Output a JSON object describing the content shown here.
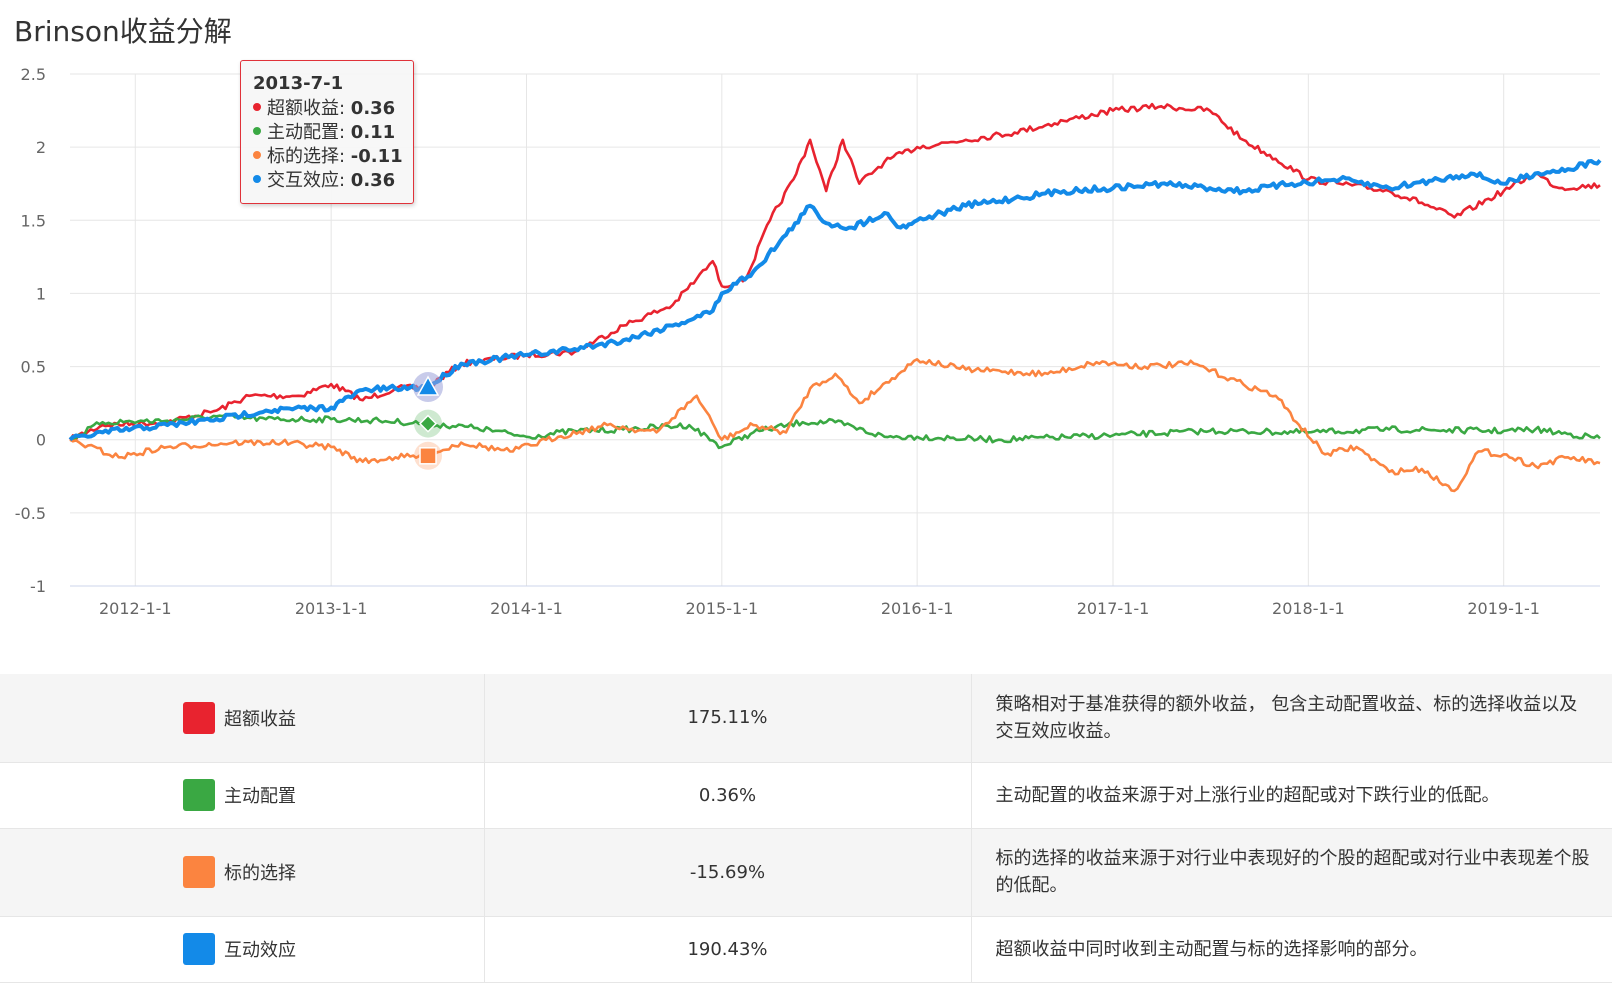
{
  "title": "Brinson收益分解",
  "tooltip": {
    "date": "2013-7-1",
    "rows": [
      {
        "name": "超额收益",
        "value": "0.36",
        "color": "#e8232f"
      },
      {
        "name": "主动配置",
        "value": "0.11",
        "color": "#3aa843"
      },
      {
        "name": "标的选择",
        "value": "-0.11",
        "color": "#fb8440"
      },
      {
        "name": "交互效应",
        "value": "0.36",
        "color": "#138ae8"
      }
    ]
  },
  "chart_data": {
    "type": "line",
    "x_ticks": [
      "2012-1-1",
      "2013-1-1",
      "2014-1-1",
      "2015-1-1",
      "2016-1-1",
      "2017-1-1",
      "2018-1-1",
      "2019-1-1"
    ],
    "y_ticks": [
      "2.5",
      "2",
      "1.5",
      "1",
      "0.5",
      "0",
      "-0.5",
      "-1"
    ],
    "ylim": [
      -1,
      2.5
    ],
    "xlim": [
      "2011-9-1",
      "2019-6-30"
    ],
    "grid": true,
    "highlight_date": "2013-7-1",
    "series": [
      {
        "name": "超额收益",
        "color": "#e8232f",
        "points": [
          [
            "2011-9-1",
            0
          ],
          [
            "2011-11-1",
            0.1
          ],
          [
            "2012-3-1",
            0.12
          ],
          [
            "2012-6-1",
            0.2
          ],
          [
            "2012-8-1",
            0.3
          ],
          [
            "2012-11-1",
            0.3
          ],
          [
            "2013-1-1",
            0.38
          ],
          [
            "2013-3-1",
            0.27
          ],
          [
            "2013-5-1",
            0.35
          ],
          [
            "2013-7-1",
            0.36
          ],
          [
            "2013-9-1",
            0.52
          ],
          [
            "2014-1-1",
            0.58
          ],
          [
            "2014-4-1",
            0.6
          ],
          [
            "2014-7-1",
            0.78
          ],
          [
            "2014-10-1",
            0.92
          ],
          [
            "2014-11-15",
            1.1
          ],
          [
            "2014-12-15",
            1.22
          ],
          [
            "2015-1-1",
            1.05
          ],
          [
            "2015-2-15",
            1.1
          ],
          [
            "2015-4-1",
            1.5
          ],
          [
            "2015-5-15",
            1.78
          ],
          [
            "2015-6-15",
            2.05
          ],
          [
            "2015-7-15",
            1.7
          ],
          [
            "2015-8-15",
            2.05
          ],
          [
            "2015-9-15",
            1.75
          ],
          [
            "2015-11-1",
            1.9
          ],
          [
            "2016-1-1",
            2.0
          ],
          [
            "2016-4-1",
            2.05
          ],
          [
            "2016-7-1",
            2.1
          ],
          [
            "2016-10-1",
            2.18
          ],
          [
            "2017-1-1",
            2.25
          ],
          [
            "2017-4-1",
            2.28
          ],
          [
            "2017-7-1",
            2.25
          ],
          [
            "2017-9-1",
            2.05
          ],
          [
            "2017-11-1",
            1.92
          ],
          [
            "2018-1-1",
            1.78
          ],
          [
            "2018-3-1",
            1.75
          ],
          [
            "2018-6-1",
            1.7
          ],
          [
            "2018-8-1",
            1.62
          ],
          [
            "2018-10-1",
            1.52
          ],
          [
            "2019-1-1",
            1.7
          ],
          [
            "2019-3-1",
            1.82
          ],
          [
            "2019-4-15",
            1.72
          ],
          [
            "2019-6-30",
            1.74
          ]
        ]
      },
      {
        "name": "主动配置",
        "color": "#3aa843",
        "points": [
          [
            "2011-9-1",
            0
          ],
          [
            "2011-11-1",
            0.12
          ],
          [
            "2012-3-1",
            0.13
          ],
          [
            "2012-6-1",
            0.16
          ],
          [
            "2012-9-1",
            0.14
          ],
          [
            "2013-1-1",
            0.14
          ],
          [
            "2013-4-1",
            0.13
          ],
          [
            "2013-7-1",
            0.11
          ],
          [
            "2013-10-1",
            0.08
          ],
          [
            "2014-1-1",
            0.02
          ],
          [
            "2014-4-1",
            0.06
          ],
          [
            "2014-7-1",
            0.07
          ],
          [
            "2014-11-1",
            0.1
          ],
          [
            "2015-1-1",
            -0.05
          ],
          [
            "2015-3-1",
            0.05
          ],
          [
            "2015-6-1",
            0.12
          ],
          [
            "2015-8-1",
            0.12
          ],
          [
            "2015-11-1",
            0.02
          ],
          [
            "2016-1-1",
            0.02
          ],
          [
            "2016-6-1",
            0.0
          ],
          [
            "2017-1-1",
            0.03
          ],
          [
            "2017-7-1",
            0.06
          ],
          [
            "2018-1-1",
            0.05
          ],
          [
            "2018-6-1",
            0.07
          ],
          [
            "2019-1-1",
            0.06
          ],
          [
            "2019-3-1",
            0.07
          ],
          [
            "2019-6-30",
            0.01
          ]
        ]
      },
      {
        "name": "标的选择",
        "color": "#fb8440",
        "points": [
          [
            "2011-9-1",
            0
          ],
          [
            "2011-12-1",
            -0.12
          ],
          [
            "2012-3-1",
            -0.05
          ],
          [
            "2012-7-1",
            -0.02
          ],
          [
            "2012-10-1",
            -0.02
          ],
          [
            "2013-1-1",
            -0.05
          ],
          [
            "2013-3-1",
            -0.15
          ],
          [
            "2013-5-1",
            -0.12
          ],
          [
            "2013-7-1",
            -0.11
          ],
          [
            "2013-9-1",
            -0.02
          ],
          [
            "2013-12-1",
            -0.08
          ],
          [
            "2014-3-1",
            0.02
          ],
          [
            "2014-6-1",
            0.1
          ],
          [
            "2014-9-1",
            0.05
          ],
          [
            "2014-11-15",
            0.3
          ],
          [
            "2015-1-1",
            0.0
          ],
          [
            "2015-3-1",
            0.1
          ],
          [
            "2015-5-1",
            0.05
          ],
          [
            "2015-6-15",
            0.35
          ],
          [
            "2015-8-1",
            0.45
          ],
          [
            "2015-9-15",
            0.25
          ],
          [
            "2015-11-15",
            0.42
          ],
          [
            "2016-1-1",
            0.55
          ],
          [
            "2016-4-1",
            0.48
          ],
          [
            "2016-9-1",
            0.45
          ],
          [
            "2016-12-1",
            0.53
          ],
          [
            "2017-3-1",
            0.5
          ],
          [
            "2017-6-1",
            0.52
          ],
          [
            "2017-9-1",
            0.38
          ],
          [
            "2017-11-1",
            0.3
          ],
          [
            "2017-12-15",
            0.1
          ],
          [
            "2018-2-1",
            -0.1
          ],
          [
            "2018-4-1",
            -0.05
          ],
          [
            "2018-6-1",
            -0.22
          ],
          [
            "2018-8-1",
            -0.2
          ],
          [
            "2018-10-1",
            -0.35
          ],
          [
            "2018-11-15",
            -0.08
          ],
          [
            "2019-1-1",
            -0.1
          ],
          [
            "2019-3-1",
            -0.18
          ],
          [
            "2019-5-1",
            -0.12
          ],
          [
            "2019-6-30",
            -0.16
          ]
        ]
      },
      {
        "name": "交互效应",
        "color": "#138ae8",
        "points": [
          [
            "2011-9-1",
            0
          ],
          [
            "2011-11-1",
            0.05
          ],
          [
            "2012-3-1",
            0.1
          ],
          [
            "2012-6-1",
            0.14
          ],
          [
            "2012-9-1",
            0.2
          ],
          [
            "2013-1-1",
            0.22
          ],
          [
            "2013-3-1",
            0.34
          ],
          [
            "2013-5-1",
            0.35
          ],
          [
            "2013-7-1",
            0.36
          ],
          [
            "2013-9-1",
            0.52
          ],
          [
            "2014-1-1",
            0.58
          ],
          [
            "2014-4-1",
            0.62
          ],
          [
            "2014-7-1",
            0.68
          ],
          [
            "2014-10-1",
            0.78
          ],
          [
            "2014-12-15",
            0.88
          ],
          [
            "2015-1-1",
            1.0
          ],
          [
            "2015-3-1",
            1.15
          ],
          [
            "2015-5-1",
            1.4
          ],
          [
            "2015-6-15",
            1.6
          ],
          [
            "2015-7-15",
            1.48
          ],
          [
            "2015-9-1",
            1.45
          ],
          [
            "2015-11-1",
            1.55
          ],
          [
            "2015-12-1",
            1.45
          ],
          [
            "2016-1-1",
            1.5
          ],
          [
            "2016-4-1",
            1.6
          ],
          [
            "2016-7-1",
            1.65
          ],
          [
            "2016-10-1",
            1.7
          ],
          [
            "2017-1-1",
            1.72
          ],
          [
            "2017-4-1",
            1.75
          ],
          [
            "2017-7-1",
            1.72
          ],
          [
            "2017-9-1",
            1.7
          ],
          [
            "2017-12-1",
            1.75
          ],
          [
            "2018-3-1",
            1.78
          ],
          [
            "2018-6-1",
            1.72
          ],
          [
            "2018-9-1",
            1.78
          ],
          [
            "2018-11-1",
            1.82
          ],
          [
            "2019-1-1",
            1.75
          ],
          [
            "2019-3-1",
            1.82
          ],
          [
            "2019-5-1",
            1.85
          ],
          [
            "2019-6-30",
            1.91
          ]
        ]
      }
    ]
  },
  "legend_table": [
    {
      "name": "超额收益",
      "color": "#e8232f",
      "value": "175.11%",
      "desc": "策略相对于基准获得的额外收益， 包含主动配置收益、标的选择收益以及交互效应收益。"
    },
    {
      "name": "主动配置",
      "color": "#3aa843",
      "value": "0.36%",
      "desc": "主动配置的收益来源于对上涨行业的超配或对下跌行业的低配。"
    },
    {
      "name": "标的选择",
      "color": "#fb8440",
      "value": "-15.69%",
      "desc": "标的选择的收益来源于对行业中表现好的个股的超配或对行业中表现差个股的低配。"
    },
    {
      "name": "互动效应",
      "color": "#138ae8",
      "value": "190.43%",
      "desc": "超额收益中同时收到主动配置与标的选择影响的部分。"
    }
  ]
}
